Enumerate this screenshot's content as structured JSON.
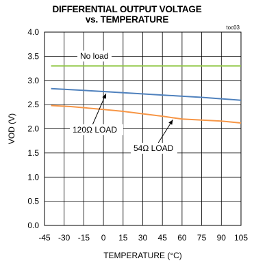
{
  "chart_data": {
    "type": "line",
    "title_line1": "DIFFERENTIAL OUTPUT VOLTAGE",
    "title_line2": "vs. TEMPERATURE",
    "corner_tag": "toc03",
    "xlabel": "TEMPERATURE (°C)",
    "ylabel": "VOD (V)",
    "xlim": [
      -45,
      105
    ],
    "ylim": [
      0.0,
      4.0
    ],
    "x_ticks": [
      -45,
      -30,
      -15,
      0,
      15,
      30,
      45,
      60,
      75,
      90,
      105
    ],
    "y_ticks": [
      0.0,
      0.5,
      1.0,
      1.5,
      2.0,
      2.5,
      3.0,
      3.5,
      4.0
    ],
    "grid": true,
    "series": [
      {
        "name": "No load",
        "color": "#8dc63f",
        "x": [
          -40,
          -25,
          0,
          25,
          50,
          75,
          105
        ],
        "y": [
          3.3,
          3.3,
          3.3,
          3.3,
          3.3,
          3.3,
          3.3
        ]
      },
      {
        "name": "120Ω LOAD",
        "color": "#4f81bd",
        "x": [
          -40,
          -25,
          0,
          25,
          50,
          75,
          105
        ],
        "y": [
          2.83,
          2.81,
          2.77,
          2.73,
          2.69,
          2.65,
          2.59
        ]
      },
      {
        "name": "54Ω LOAD",
        "color": "#f79646",
        "x": [
          -40,
          -25,
          0,
          15,
          30,
          45,
          60,
          75,
          90,
          105
        ],
        "y": [
          2.48,
          2.46,
          2.4,
          2.36,
          2.31,
          2.26,
          2.2,
          2.18,
          2.16,
          2.12
        ]
      }
    ]
  }
}
